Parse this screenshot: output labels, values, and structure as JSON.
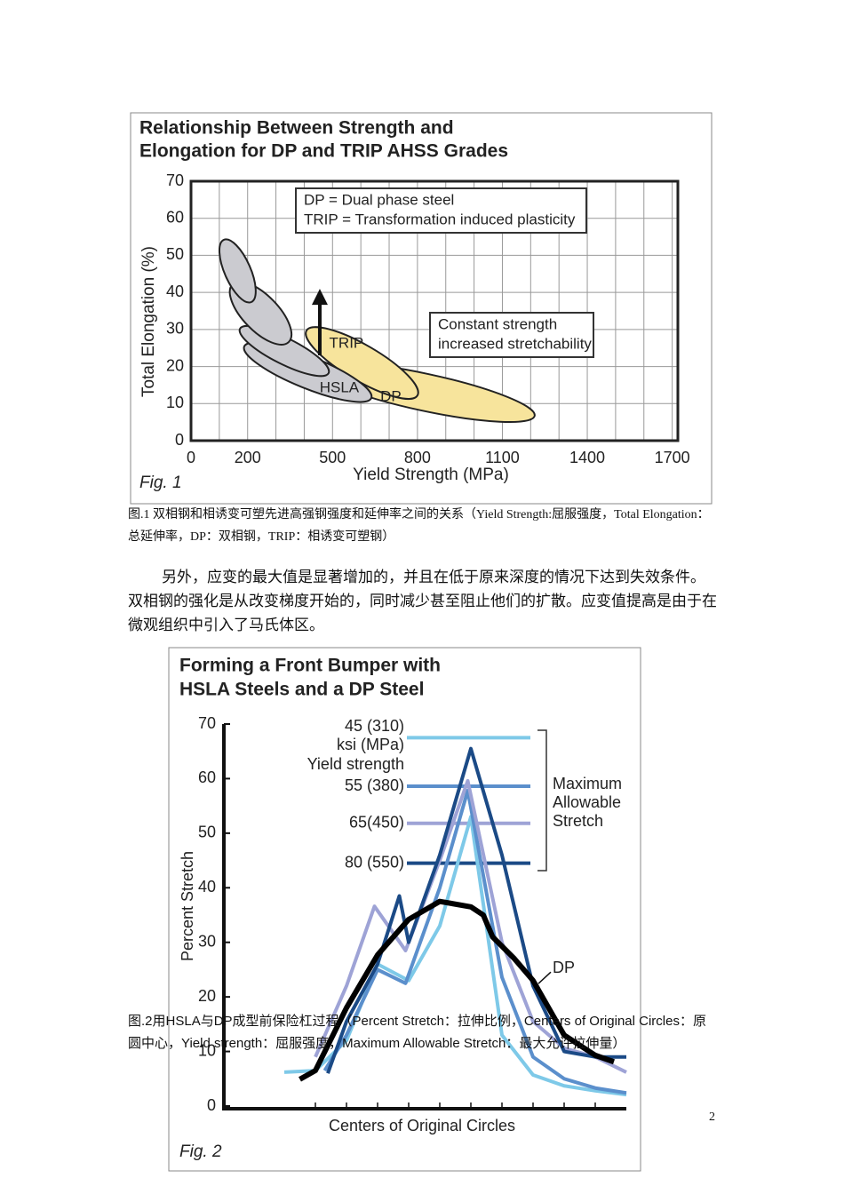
{
  "chart_data": [
    {
      "type": "region",
      "title": [
        "Relationship Between Strength and",
        "Elongation for DP and TRIP AHSS Grades"
      ],
      "x_label": "Yield Strength (MPa)",
      "y_label": "Total Elongation (%)",
      "xlim": [
        0,
        1720
      ],
      "ylim": [
        0,
        70
      ],
      "xticks": [
        0,
        200,
        500,
        800,
        1100,
        1400,
        1700
      ],
      "x_minor_ticks": [
        100,
        300,
        400,
        600,
        700,
        900,
        1000,
        1200,
        1300,
        1500,
        1600
      ],
      "yticks": [
        0,
        10,
        20,
        30,
        40,
        50,
        60,
        70
      ],
      "grid": true,
      "regions": [
        {
          "label": "DP",
          "color": "#f7e49c",
          "from": [
            439,
            19.4
          ],
          "to": [
            1214,
            6.7
          ],
          "half_width": 5,
          "label_at": [
            706,
            11.8
          ]
        },
        {
          "label": "TRIP",
          "color": "#f7e49c",
          "from": [
            408,
            29.7
          ],
          "to": [
            800,
            12.2
          ],
          "half_width": 4.8,
          "label_at": [
            549,
            26.1
          ]
        },
        {
          "label": "HSLA",
          "color": "#cbcbd0",
          "from": [
            188,
            25.4
          ],
          "to": [
            637,
            11.5
          ],
          "half_width": 4.3,
          "label_at": [
            524,
            14.1
          ]
        },
        {
          "label": null,
          "color": "#cbcbd0",
          "from": [
            173,
            30.2
          ],
          "to": [
            486,
            18.2
          ],
          "half_width": 3.5
        },
        {
          "label": null,
          "color": "#cbcbd0",
          "from": [
            147,
            42.2
          ],
          "to": [
            345,
            26.6
          ],
          "half_width": 4.8
        },
        {
          "label": null,
          "color": "#cbcbd0",
          "from": [
            116,
            54.2
          ],
          "to": [
            213,
            37.4
          ],
          "half_width": 3.5
        }
      ],
      "arrow": {
        "x": 455,
        "from": 23,
        "to": 40
      },
      "notes": [
        [
          "DP = Dual phase steel",
          "TRIP = Transformation induced plasticity"
        ],
        [
          "Constant strength",
          "increased stretchability"
        ]
      ],
      "fig_label": "Fig. 1"
    },
    {
      "type": "line",
      "title": [
        "Forming a Front Bumper with",
        "HSLA Steels and a DP Steel"
      ],
      "x_label": "Centers of Original Circles",
      "y_label": "Percent Stretch",
      "xlim": [
        0,
        13
      ],
      "ylim": [
        0,
        70
      ],
      "x_tick_marks": [
        3,
        4,
        5,
        6,
        7,
        8,
        9,
        10,
        11,
        12
      ],
      "yticks": [
        0,
        10,
        20,
        30,
        40,
        50,
        60,
        70
      ],
      "legend_heading": [
        "ksi (MPa)",
        "Yield strength"
      ],
      "max_label": [
        "Maximum",
        "Allowable",
        "Stretch"
      ],
      "series": [
        {
          "name": "45 (310)",
          "color": "#7ec9e8",
          "max_stretch": 67.5,
          "x": [
            2,
            3,
            4,
            5,
            6,
            7,
            8,
            9,
            10,
            11,
            12,
            13
          ],
          "values": [
            6.2,
            6.5,
            12,
            26,
            23,
            33,
            53,
            13,
            5.7,
            3.7,
            2.8,
            2.1
          ]
        },
        {
          "name": "55 (380)",
          "color": "#5b8fcc",
          "max_stretch": 58.6,
          "x": [
            3.3,
            4,
            5,
            5.9,
            7,
            7.9,
            9,
            10,
            11,
            12,
            13
          ],
          "values": [
            6.5,
            13,
            25,
            22.5,
            40,
            57.8,
            23.6,
            9,
            5,
            3.3,
            2.4
          ]
        },
        {
          "name": "65(450)",
          "color": "#9ea3d6",
          "max_stretch": 51.8,
          "x": [
            3,
            4,
            4.9,
            5.9,
            7,
            7.9,
            9,
            10,
            11,
            12,
            13
          ],
          "values": [
            9,
            22,
            36.6,
            28.5,
            45,
            59.6,
            30,
            15.5,
            10.6,
            9,
            6.2
          ]
        },
        {
          "name": "80 (550)",
          "color": "#1b4a86",
          "max_stretch": 44.5,
          "x": [
            3.4,
            4,
            5,
            5.7,
            6,
            7,
            8,
            9,
            10,
            11,
            12,
            13
          ],
          "values": [
            6,
            15.5,
            26,
            38.5,
            30,
            46,
            65.5,
            46,
            22,
            10,
            9,
            9
          ]
        },
        {
          "name": "DP",
          "color": "#000000",
          "x": [
            2.5,
            3,
            4,
            5,
            6,
            7,
            8,
            8.4,
            8.7,
            9.4,
            10,
            11,
            12,
            12.6
          ],
          "values": [
            4.9,
            6.5,
            18,
            27.7,
            34.2,
            37.5,
            36.5,
            35,
            31,
            27,
            23,
            13,
            9.3,
            8.1
          ],
          "label_at": [
            10.8,
            25.2
          ]
        }
      ],
      "fig_label": "Fig. 2"
    }
  ],
  "captions": [
    "图.1 双相钢和相诱变可塑先进高强钢强度和延伸率之间的关系（Yield Strength:屈服强度，Total Elongation：总延伸率，DP：双相钢，TRIP：相诱变可塑钢）",
    "图.2用HSLA与DP成型前保险杠过程（Percent Stretch：拉伸比例，Centers of Original Circles：原圆中心，Yield strength：屈服强度，Maximum Allowable Stretch：最大允许拉伸量）"
  ],
  "paragraph": "另外，应变的最大值是显著增加的，并且在低于原来深度的情况下达到失效条件。双相钢的强化是从改变梯度开始的，同时减少甚至阻止他们的扩散。应变值提高是由于在微观组织中引入了马氏体区。",
  "page_number": 2
}
